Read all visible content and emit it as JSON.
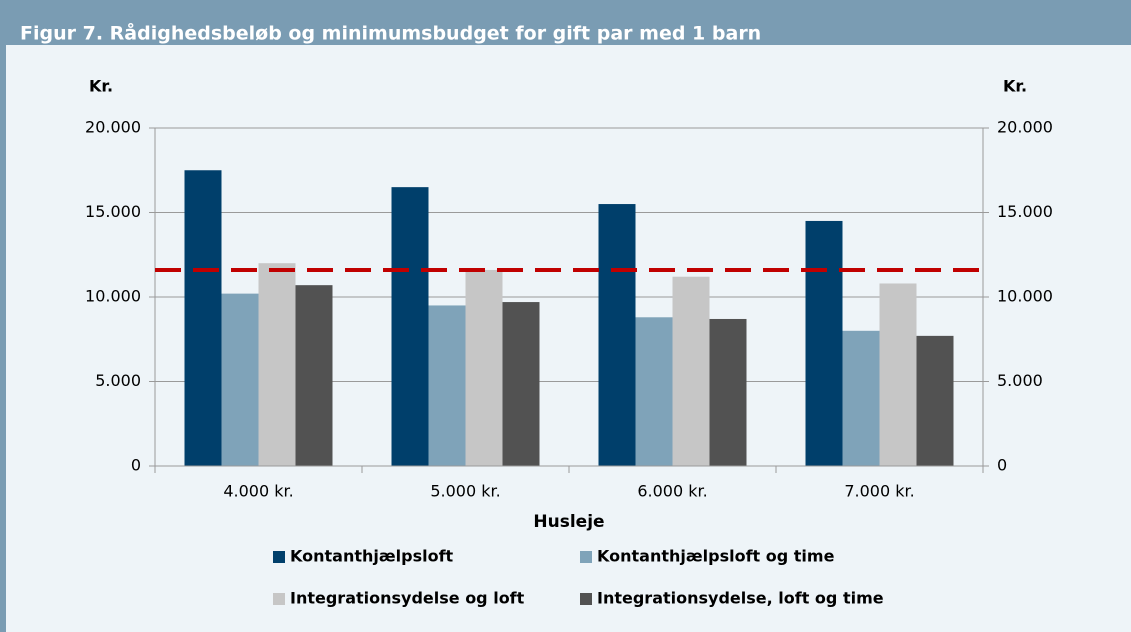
{
  "chart_data": {
    "type": "bar",
    "title": "Figur 7. Rådighedsbeløb og minimumsbudget for gift par med 1 barn",
    "ylabel": "Kr.",
    "y2label": "Kr.",
    "xlabel": "Husleje",
    "categories": [
      "4.000 kr.",
      "5.000 kr.",
      "6.000 kr.",
      "7.000 kr."
    ],
    "series": [
      {
        "name": "Kontanthjælpsloft",
        "color": "#003f6b",
        "values": [
          17500,
          16500,
          15500,
          14500
        ]
      },
      {
        "name": "Kontanthjælpsloft og time",
        "color": "#7fa3b9",
        "values": [
          10200,
          9500,
          8800,
          8000
        ]
      },
      {
        "name": "Integrationsydelse og loft",
        "color": "#c6c6c6",
        "values": [
          12000,
          11600,
          11200,
          10800
        ]
      },
      {
        "name": "Integrationsydelse, loft og time",
        "color": "#525252",
        "values": [
          10700,
          9700,
          8700,
          7700
        ]
      }
    ],
    "reference_line": {
      "value": 11600,
      "color": "#c00000"
    },
    "ylim": [
      0,
      20000
    ],
    "yticks": [
      0,
      {
        "value": 5000,
        "label": "5.000"
      },
      {
        "value": 10000,
        "label": "10.000"
      },
      {
        "value": 15000,
        "label": "15.000"
      },
      {
        "value": 20000,
        "label": "20.000"
      }
    ],
    "y2lim": [
      0,
      20000
    ],
    "y2ticks": [
      0,
      {
        "value": 5000,
        "label": "5.000"
      },
      {
        "value": 10000,
        "label": "10.000"
      },
      {
        "value": 15000,
        "label": "15.000"
      },
      {
        "value": 20000,
        "label": "20.000"
      }
    ],
    "grid": true
  }
}
